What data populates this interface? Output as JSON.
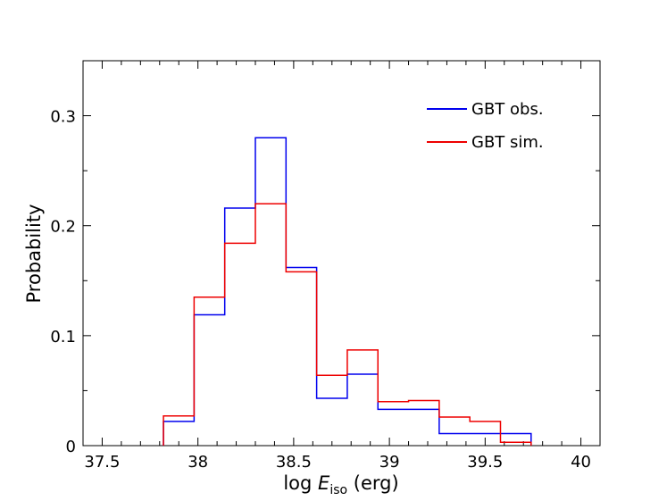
{
  "chart_data": {
    "type": "step-histogram",
    "title": "",
    "xlabel_prefix": "log ",
    "xlabel_var": "E",
    "xlabel_sub": "iso",
    "xlabel_suffix": " (erg)",
    "ylabel": "Probability",
    "xlim": [
      37.4,
      40.1
    ],
    "ylim": [
      0,
      0.35
    ],
    "x_ticks": [
      37.5,
      38,
      38.5,
      39,
      39.5,
      40
    ],
    "x_tick_labels": [
      "37.5",
      "38",
      "38.5",
      "39",
      "39.5",
      "40"
    ],
    "y_ticks": [
      0,
      0.1,
      0.2,
      0.3
    ],
    "y_tick_labels": [
      "0",
      "0.1",
      "0.2",
      "0.3"
    ],
    "bin_edges": [
      37.82,
      37.98,
      38.14,
      38.3,
      38.46,
      38.62,
      38.78,
      38.94,
      39.1,
      39.26,
      39.42,
      39.58,
      39.74
    ],
    "legend_position": "top-right",
    "series": [
      {
        "name": "GBT obs.",
        "color": "#0000ee",
        "values": [
          0.022,
          0.119,
          0.216,
          0.28,
          0.162,
          0.043,
          0.065,
          0.033,
          0.033,
          0.011,
          0.011,
          0.011
        ]
      },
      {
        "name": "GBT sim.",
        "color": "#ee0000",
        "values": [
          0.027,
          0.135,
          0.184,
          0.22,
          0.158,
          0.064,
          0.087,
          0.04,
          0.041,
          0.026,
          0.022,
          0.003
        ]
      }
    ]
  }
}
